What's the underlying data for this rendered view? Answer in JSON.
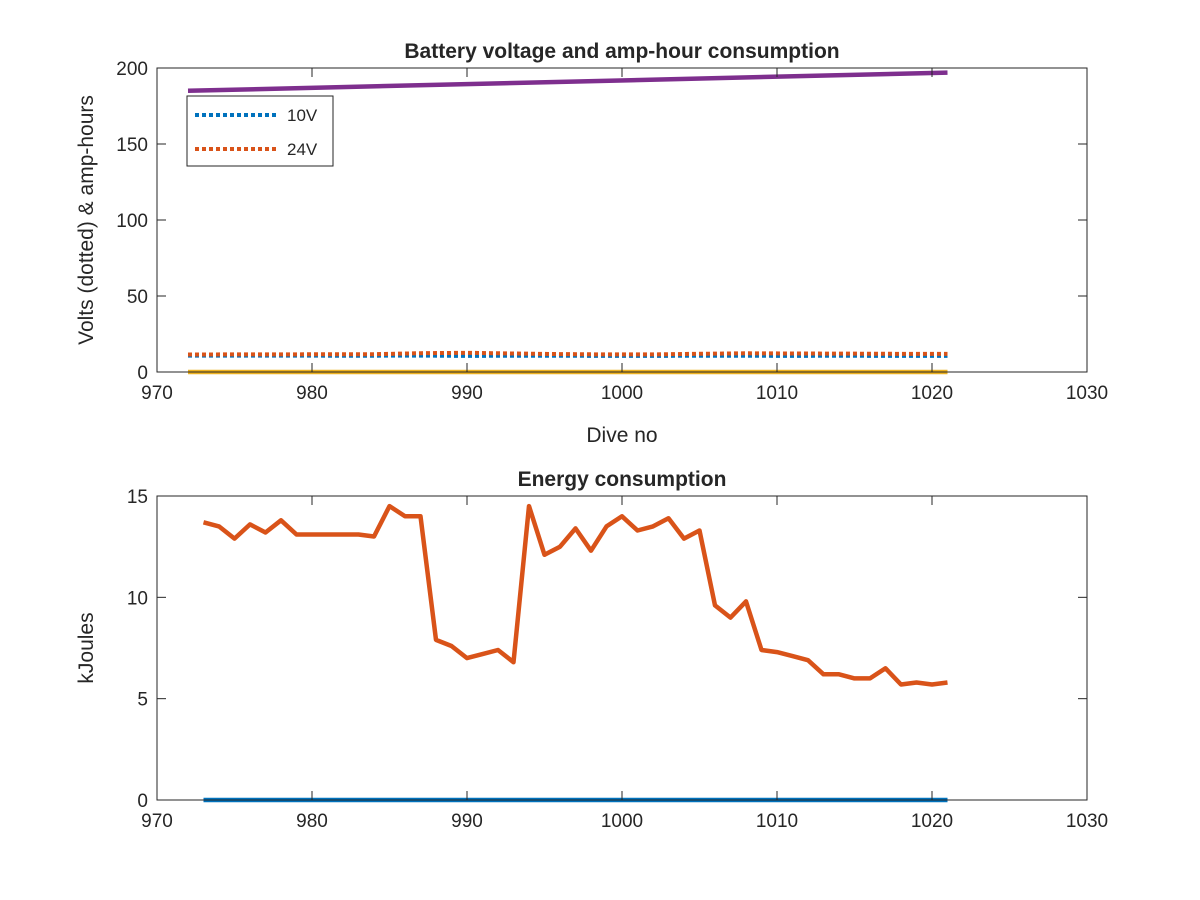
{
  "chart_data": [
    {
      "type": "line",
      "title": "Battery voltage and amp-hour consumption",
      "xlabel": "Dive no",
      "ylabel": "Volts (dotted) & amp-hours",
      "xlim": [
        970,
        1030
      ],
      "ylim": [
        0,
        200
      ],
      "xticks": [
        970,
        980,
        990,
        1000,
        1010,
        1020,
        1030
      ],
      "yticks": [
        0,
        50,
        100,
        150,
        200
      ],
      "grid": false,
      "legend": "top-left",
      "series": [
        {
          "name": "10V",
          "style": "dotted",
          "color": "#0072BD",
          "x": [
            972,
            975,
            978,
            981,
            984,
            987,
            990,
            993,
            996,
            999,
            1002,
            1005,
            1008,
            1011,
            1014,
            1017,
            1021
          ],
          "y": [
            10.8,
            10.8,
            10.8,
            10.7,
            10.7,
            10.8,
            10.6,
            10.7,
            10.7,
            10.6,
            10.6,
            10.7,
            10.7,
            10.6,
            10.7,
            10.6,
            10.6
          ]
        },
        {
          "name": "24V",
          "style": "dotted",
          "color": "#D95319",
          "x": [
            972,
            975,
            978,
            981,
            984,
            987,
            990,
            993,
            996,
            999,
            1002,
            1005,
            1008,
            1011,
            1014,
            1017,
            1021
          ],
          "y": [
            11.5,
            11.6,
            11.6,
            11.7,
            11.7,
            12.4,
            12.6,
            12.2,
            11.8,
            11.6,
            11.6,
            12.0,
            12.3,
            12.2,
            12.1,
            12.0,
            11.9
          ]
        },
        {
          "color": "#7E2F8E",
          "style": "solid",
          "x": [
            972,
            1021
          ],
          "y": [
            185,
            197
          ]
        },
        {
          "color": "#EDB120",
          "style": "solid",
          "x": [
            972,
            1021
          ],
          "y": [
            0,
            0
          ]
        }
      ]
    },
    {
      "type": "line",
      "title": "Energy consumption",
      "xlabel": "",
      "ylabel": "kJoules",
      "xlim": [
        970,
        1030
      ],
      "ylim": [
        0,
        15
      ],
      "xticks": [
        970,
        980,
        990,
        1000,
        1010,
        1020,
        1030
      ],
      "yticks": [
        0,
        5,
        10,
        15
      ],
      "grid": false,
      "series": [
        {
          "color": "#D95319",
          "style": "solid",
          "x": [
            973,
            974,
            975,
            976,
            977,
            978,
            979,
            980,
            981,
            982,
            983,
            984,
            985,
            986,
            987,
            988,
            989,
            990,
            991,
            992,
            993,
            994,
            995,
            996,
            997,
            998,
            999,
            1000,
            1001,
            1002,
            1003,
            1004,
            1005,
            1006,
            1007,
            1008,
            1009,
            1010,
            1011,
            1012,
            1013,
            1014,
            1015,
            1016,
            1017,
            1018,
            1019,
            1020,
            1021
          ],
          "y": [
            13.7,
            13.5,
            12.9,
            13.6,
            13.2,
            13.8,
            13.1,
            13.1,
            13.1,
            13.1,
            13.1,
            13.0,
            14.5,
            14.0,
            14.0,
            7.9,
            7.6,
            7.0,
            7.2,
            7.4,
            6.8,
            14.5,
            12.1,
            12.5,
            13.4,
            12.3,
            13.5,
            14.0,
            13.3,
            13.5,
            13.9,
            12.9,
            13.3,
            9.6,
            9.0,
            9.8,
            7.4,
            7.3,
            7.1,
            6.9,
            6.2,
            6.2,
            6.0,
            6.0,
            6.5,
            5.7,
            5.8,
            5.7,
            5.8
          ]
        },
        {
          "color": "#0072BD",
          "style": "solid",
          "x": [
            973,
            1021
          ],
          "y": [
            0,
            0
          ]
        }
      ]
    }
  ]
}
